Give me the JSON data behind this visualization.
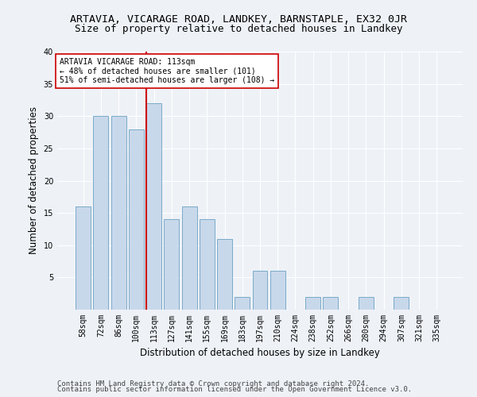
{
  "title": "ARTAVIA, VICARAGE ROAD, LANDKEY, BARNSTAPLE, EX32 0JR",
  "subtitle": "Size of property relative to detached houses in Landkey",
  "xlabel": "Distribution of detached houses by size in Landkey",
  "ylabel": "Number of detached properties",
  "categories": [
    "58sqm",
    "72sqm",
    "86sqm",
    "100sqm",
    "113sqm",
    "127sqm",
    "141sqm",
    "155sqm",
    "169sqm",
    "183sqm",
    "197sqm",
    "210sqm",
    "224sqm",
    "238sqm",
    "252sqm",
    "266sqm",
    "280sqm",
    "294sqm",
    "307sqm",
    "321sqm",
    "335sqm"
  ],
  "values": [
    16,
    30,
    30,
    28,
    32,
    14,
    16,
    14,
    11,
    2,
    6,
    6,
    0,
    2,
    2,
    0,
    2,
    0,
    2,
    0,
    0
  ],
  "bar_color": "#c8d8eb",
  "bar_edge_color": "#7aaac8",
  "highlight_bar_index": 4,
  "highlight_line_color": "#cc0000",
  "annotation_text": "ARTAVIA VICARAGE ROAD: 113sqm\n← 48% of detached houses are smaller (101)\n51% of semi-detached houses are larger (108) →",
  "annotation_box_color": "#ffffff",
  "annotation_box_edge_color": "#cc0000",
  "footer_line1": "Contains HM Land Registry data © Crown copyright and database right 2024.",
  "footer_line2": "Contains public sector information licensed under the Open Government Licence v3.0.",
  "ylim": [
    0,
    40
  ],
  "yticks": [
    0,
    5,
    10,
    15,
    20,
    25,
    30,
    35,
    40
  ],
  "bg_color": "#eef2f7",
  "grid_color": "#ffffff",
  "title_fontsize": 9.5,
  "subtitle_fontsize": 9,
  "axis_label_fontsize": 8.5,
  "tick_fontsize": 7,
  "footer_fontsize": 6.5,
  "annot_fontsize": 7
}
